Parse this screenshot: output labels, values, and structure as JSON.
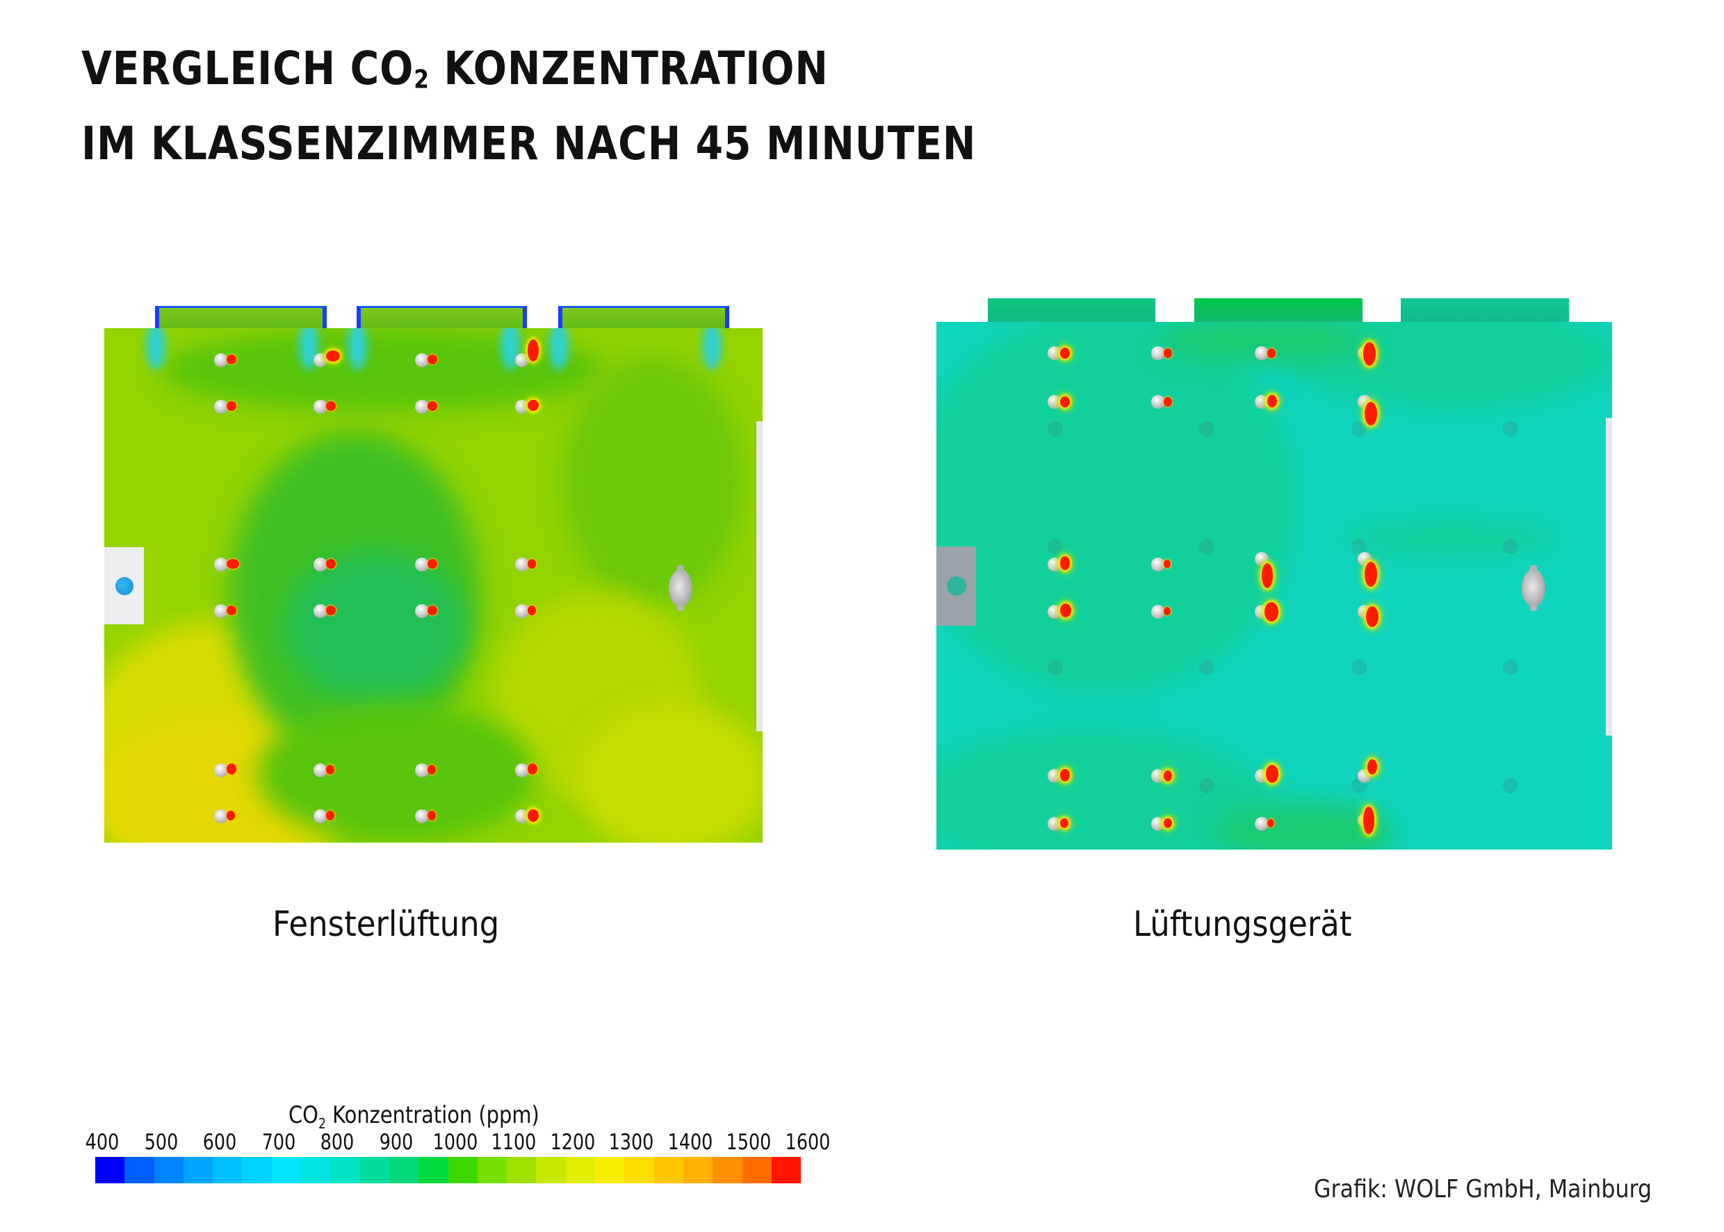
{
  "title": {
    "line1_prefix": "VERGLEICH CO",
    "line1_sub": "2",
    "line1_suffix": " KONZENTRATION",
    "line2": "IM KLASSENZIMMER NACH 45 MINUTEN"
  },
  "panels": [
    {
      "caption": "Fensterlüftung",
      "description": "Window ventilation: room CO2 mostly 900–1300 ppm (green to yellow-green), higher near left wall",
      "dominant_colors": [
        "#5cc80a",
        "#8cd400",
        "#b8dc00",
        "#d4e000",
        "#3dbf2a"
      ]
    },
    {
      "caption": "Lüftungsgerät",
      "description": "Ventilation unit: room CO2 mostly 700–850 ppm (turquoise/teal)",
      "dominant_colors": [
        "#12d09c",
        "#10d4be",
        "#18c97e"
      ]
    }
  ],
  "legend": {
    "title_prefix": "CO",
    "title_sub": "2",
    "title_suffix": "  Konzentration (ppm)",
    "ticks": [
      "400",
      "500",
      "600",
      "700",
      "800",
      "900",
      "1000",
      "1100",
      "1200",
      "1300",
      "1400",
      "1500",
      "1600"
    ],
    "colors": [
      "#0000ff",
      "#0060ff",
      "#0085ff",
      "#00a5ff",
      "#00bfff",
      "#00d2ff",
      "#00e5ff",
      "#00e3e0",
      "#00e2c5",
      "#00dc9c",
      "#00d87a",
      "#00d83c",
      "#3dd800",
      "#78e000",
      "#a0e000",
      "#c8e800",
      "#e0ec00",
      "#f8ee00",
      "#ffdd00",
      "#ffc600",
      "#ffb000",
      "#ff9000",
      "#ff6c00",
      "#ff1500"
    ]
  },
  "credit": "Grafik: WOLF GmbH, Mainburg",
  "chart_data": {
    "type": "heatmap",
    "title": "VERGLEICH CO2 KONZENTRATION IM KLASSENZIMMER NACH 45 MINUTEN",
    "panels": [
      "Fensterlüftung",
      "Lüftungsgerät"
    ],
    "colorbar": {
      "label": "CO2 Konzentration (ppm)",
      "min": 400,
      "max": 1600,
      "ticks": [
        400,
        500,
        600,
        700,
        800,
        900,
        1000,
        1100,
        1200,
        1300,
        1400,
        1500,
        1600
      ],
      "levels": 24
    },
    "approx_room_levels_ppm": {
      "Fensterlüftung": {
        "typical_range": [
          950,
          1300
        ],
        "dominant": 1100
      },
      "Lüftungsgerät": {
        "typical_range": [
          750,
          900
        ],
        "dominant": 800
      }
    },
    "students_per_room": 24,
    "source": "Grafik: WOLF GmbH, Mainburg"
  }
}
